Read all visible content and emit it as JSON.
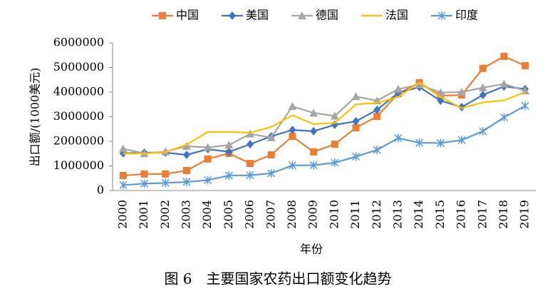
{
  "chart_data": {
    "type": "line",
    "caption": "图 6　主要国家农药出口额变化趋势",
    "x_label": "年份",
    "y_label": "出口额/(1000美元)",
    "categories": [
      "2000",
      "2001",
      "2002",
      "2003",
      "2004",
      "2005",
      "2006",
      "2007",
      "2008",
      "2009",
      "2010",
      "2011",
      "2012",
      "2013",
      "2014",
      "2015",
      "2016",
      "2017",
      "2018",
      "2019"
    ],
    "ylim": [
      0,
      6000000
    ],
    "yticks": [
      0,
      1000000,
      2000000,
      3000000,
      4000000,
      5000000,
      6000000
    ],
    "grid": false,
    "legend": "top",
    "series": [
      {
        "name": "中国",
        "color": "#ed7d31",
        "marker": "square",
        "values": [
          610000,
          670000,
          670000,
          810000,
          1280000,
          1510000,
          1100000,
          1450000,
          2200000,
          1570000,
          1880000,
          2550000,
          3010000,
          3940000,
          4380000,
          3850000,
          3880000,
          4960000,
          5450000,
          5070000
        ]
      },
      {
        "name": "美国",
        "color": "#4472c4",
        "marker": "diamond",
        "values": [
          1510000,
          1540000,
          1540000,
          1450000,
          1680000,
          1570000,
          1880000,
          2200000,
          2460000,
          2410000,
          2670000,
          2810000,
          3280000,
          3970000,
          4200000,
          3650000,
          3390000,
          3880000,
          4230000,
          4120000
        ]
      },
      {
        "name": "德国",
        "color": "#a5a5a5",
        "marker": "triangle",
        "values": [
          1700000,
          1500000,
          1580000,
          1800000,
          1750000,
          1850000,
          2300000,
          2150000,
          3420000,
          3150000,
          3030000,
          3820000,
          3650000,
          4120000,
          4300000,
          3980000,
          4000000,
          4180000,
          4330000,
          4050000
        ]
      },
      {
        "name": "法国",
        "color": "#ffc000",
        "marker": "none",
        "values": [
          1500000,
          1500000,
          1560000,
          1860000,
          2380000,
          2380000,
          2350000,
          2580000,
          3060000,
          2700000,
          2740000,
          3500000,
          3560000,
          3800000,
          4380000,
          3800000,
          3350000,
          3580000,
          3660000,
          4000000
        ]
      },
      {
        "name": "印度",
        "color": "#5b9bd5",
        "marker": "asterisk",
        "values": [
          220000,
          280000,
          310000,
          350000,
          420000,
          610000,
          620000,
          700000,
          1020000,
          1030000,
          1130000,
          1380000,
          1650000,
          2130000,
          1940000,
          1930000,
          2050000,
          2410000,
          2970000,
          3440000
        ]
      }
    ]
  }
}
